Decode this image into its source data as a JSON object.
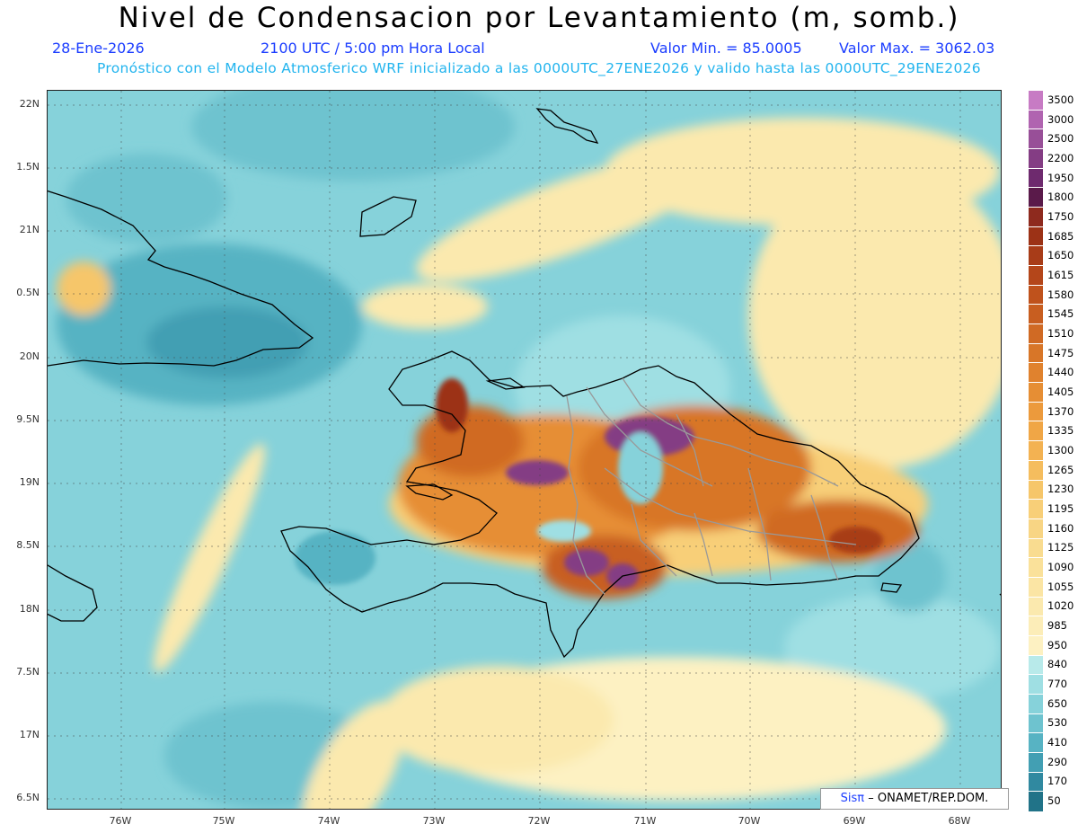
{
  "header": {
    "title": "Nivel de Condensacion por Levantamiento (m, somb.)",
    "date": "28-Ene-2026",
    "time": "2100 UTC / 5:00 pm Hora Local",
    "min_label": "Valor Min. = 85.0005",
    "max_label": "Valor Max. = 3062.03",
    "model_note": "Pronóstico con el Modelo Atmosferico WRF inicializado a las 0000UTC_27ENE2026 y valido hasta las  0000UTC_29ENE2026"
  },
  "y_labels": [
    "22N",
    "1.5N",
    "21N",
    "0.5N",
    "20N",
    "9.5N",
    "19N",
    "8.5N",
    "18N",
    "7.5N",
    "17N",
    "6.5N"
  ],
  "x_labels": [
    "76W",
    "75W",
    "74W",
    "73W",
    "72W",
    "71W",
    "70W",
    "69W",
    "68W"
  ],
  "legend": {
    "labels": [
      "3500",
      "3000",
      "2500",
      "2200",
      "1950",
      "1800",
      "1750",
      "1685",
      "1650",
      "1615",
      "1580",
      "1545",
      "1510",
      "1475",
      "1440",
      "1405",
      "1370",
      "1335",
      "1300",
      "1265",
      "1230",
      "1195",
      "1160",
      "1125",
      "1090",
      "1055",
      "1020",
      "985",
      "950",
      "840",
      "770",
      "650",
      "530",
      "410",
      "290",
      "170",
      "50"
    ],
    "colors": [
      "#c77bc4",
      "#b064b0",
      "#984f98",
      "#843d84",
      "#6e2a6e",
      "#5a1a4a",
      "#8e2a1e",
      "#9c3216",
      "#a83c18",
      "#b4461a",
      "#bf521c",
      "#c85e20",
      "#d06a24",
      "#d87628",
      "#e0822e",
      "#e68e34",
      "#ec9a3c",
      "#f0a646",
      "#f3b252",
      "#f5bd5e",
      "#f6c66a",
      "#f8cf78",
      "#f8d584",
      "#f9dc90",
      "#fae19a",
      "#fbe5a4",
      "#fbe9ae",
      "#fcedb8",
      "#fdf1c2",
      "#b8eaea",
      "#9fdfe3",
      "#86d2da",
      "#6ec3cf",
      "#57b3c3",
      "#429fb3",
      "#3089a0",
      "#217388"
    ]
  },
  "credit": {
    "sis": "Sisπ",
    "org": "– ONAMET/REP.DOM."
  }
}
